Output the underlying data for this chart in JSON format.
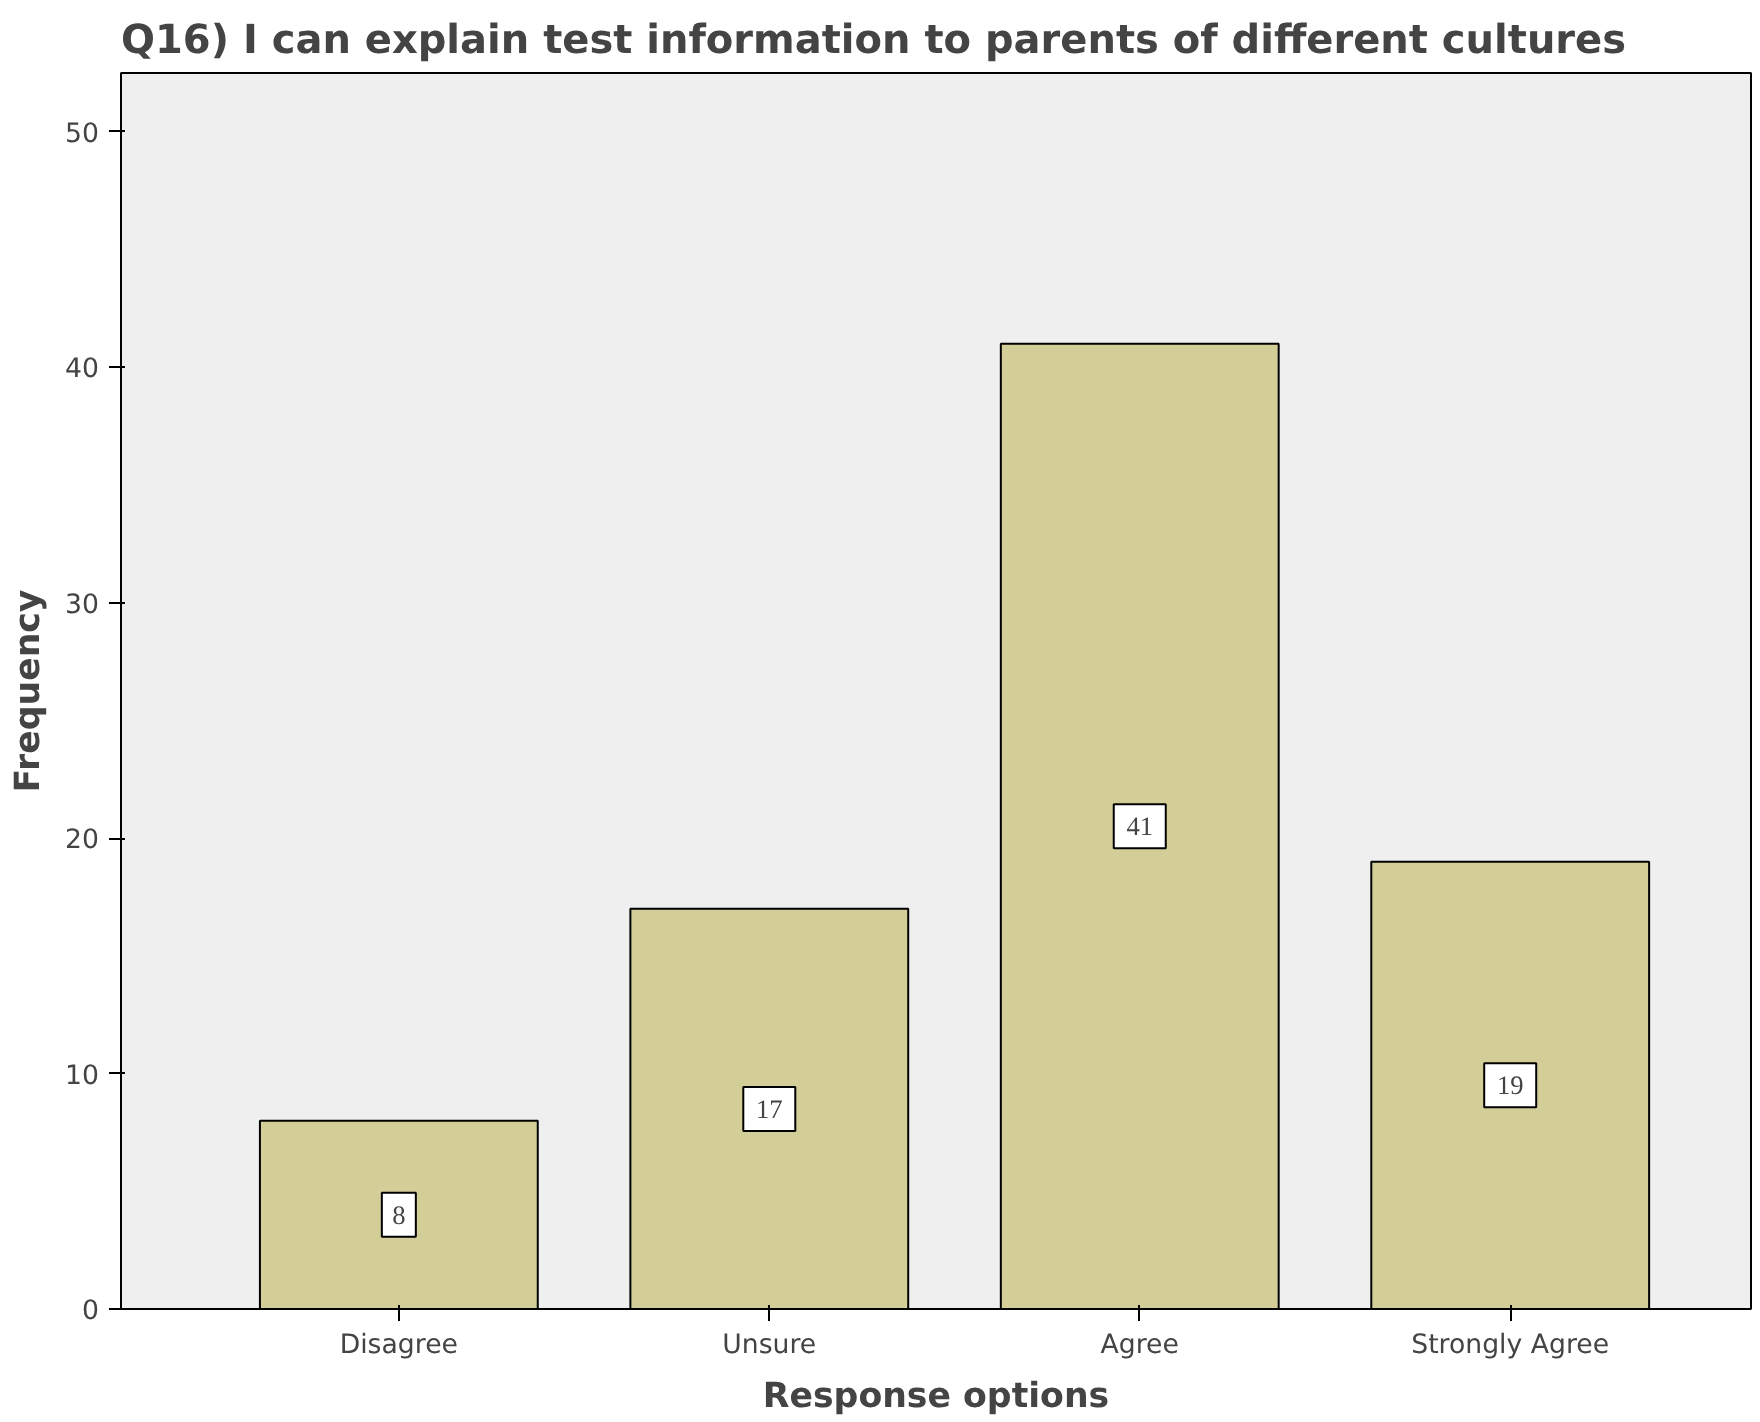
{
  "chart_data": {
    "type": "bar",
    "title": "Q16) I can explain test information to parents of different cultures",
    "xlabel": "Response options",
    "ylabel": "Frequency",
    "categories": [
      "Disagree",
      "Unsure",
      "Agree",
      "Strongly Agree"
    ],
    "values": [
      8,
      17,
      41,
      19
    ],
    "color": "#d3ce97",
    "ylim": [
      0,
      52.5
    ],
    "yticks": [
      0,
      10,
      20,
      30,
      40,
      50
    ],
    "grid": false,
    "data_labels": true
  }
}
